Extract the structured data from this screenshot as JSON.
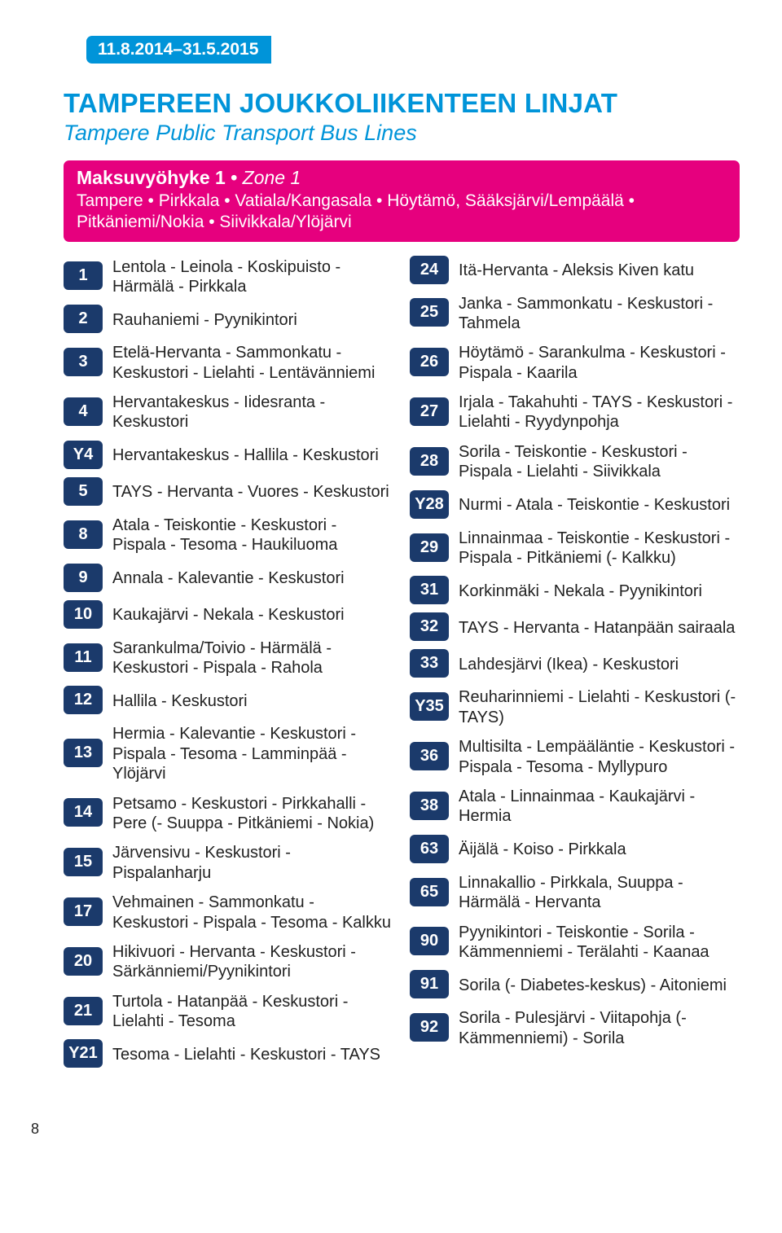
{
  "date_range": "11.8.2014–31.5.2015",
  "title": "TAMPEREEN JOUKKOLIIKENTEEN LINJAT",
  "subtitle": "Tampere Public Transport Bus Lines",
  "zone": {
    "label": "Maksuvyöhyke 1",
    "zone_en": "Zone 1",
    "areas": "Tampere • Pirkkala • Vatiala/Kangasala • Höytämö, Sääksjärvi/Lempäälä • Pitkäniemi/Nokia • Siivikkala/Ylöjärvi"
  },
  "colors": {
    "accent": "#0094d9",
    "zone_bg": "#e6007e",
    "badge_bg": "#1b3a6b"
  },
  "left": [
    {
      "num": "1",
      "route": "Lentola - Leinola - Koskipuisto - Härmälä - Pirkkala"
    },
    {
      "num": "2",
      "route": "Rauhaniemi - Pyynikintori"
    },
    {
      "num": "3",
      "route": "Etelä-Hervanta - Sammonkatu - Keskustori - Lielahti - Lentävänniemi"
    },
    {
      "num": "4",
      "route": "Hervantakeskus - Iidesranta - Keskustori"
    },
    {
      "num": "Y4",
      "route": "Hervantakeskus - Hallila - Keskustori"
    },
    {
      "num": "5",
      "route": "TAYS - Hervanta - Vuores - Keskustori"
    },
    {
      "num": "8",
      "route": "Atala - Teiskontie - Keskustori - Pispala - Tesoma - Haukiluoma"
    },
    {
      "num": "9",
      "route": "Annala - Kalevantie - Keskustori"
    },
    {
      "num": "10",
      "route": "Kaukajärvi - Nekala - Keskustori"
    },
    {
      "num": "11",
      "route": "Sarankulma/Toivio - Härmälä - Keskustori - Pispala - Rahola"
    },
    {
      "num": "12",
      "route": "Hallila - Keskustori"
    },
    {
      "num": "13",
      "route": "Hermia - Kalevantie - Keskustori - Pispala - Tesoma - Lamminpää - Ylöjärvi"
    },
    {
      "num": "14",
      "route": "Petsamo - Keskustori - Pirkkahalli - Pere (- Suuppa - Pitkäniemi - Nokia)"
    },
    {
      "num": "15",
      "route": "Järvensivu - Keskustori - Pispalanharju"
    },
    {
      "num": "17",
      "route": "Vehmainen - Sammonkatu - Keskustori - Pispala - Tesoma - Kalkku"
    },
    {
      "num": "20",
      "route": "Hikivuori - Hervanta - Keskustori - Särkänniemi/Pyynikintori"
    },
    {
      "num": "21",
      "route": "Turtola - Hatanpää - Keskustori - Lielahti - Tesoma"
    },
    {
      "num": "Y21",
      "route": "Tesoma - Lielahti - Keskustori - TAYS"
    }
  ],
  "right": [
    {
      "num": "24",
      "route": "Itä-Hervanta - Aleksis Kiven katu"
    },
    {
      "num": "25",
      "route": "Janka - Sammonkatu - Keskustori - Tahmela"
    },
    {
      "num": "26",
      "route": "Höytämö - Sarankulma - Keskustori - Pispala - Kaarila"
    },
    {
      "num": "27",
      "route": "Irjala - Takahuhti - TAYS - Keskustori - Lielahti - Ryydynpohja"
    },
    {
      "num": "28",
      "route": "Sorila - Teiskontie - Keskustori - Pispala - Lielahti - Siivikkala"
    },
    {
      "num": "Y28",
      "route": "Nurmi - Atala - Teiskontie - Keskustori"
    },
    {
      "num": "29",
      "route": "Linnainmaa - Teiskontie - Keskustori - Pispala - Pitkäniemi (- Kalkku)"
    },
    {
      "num": "31",
      "route": "Korkinmäki - Nekala - Pyynikintori"
    },
    {
      "num": "32",
      "route": "TAYS - Hervanta - Hatanpään sairaala"
    },
    {
      "num": "33",
      "route": "Lahdesjärvi (Ikea) - Keskustori"
    },
    {
      "num": "Y35",
      "route": "Reuharinniemi - Lielahti - Keskustori (- TAYS)"
    },
    {
      "num": "36",
      "route": "Multisilta - Lempääläntie - Keskustori - Pispala - Tesoma - Myllypuro"
    },
    {
      "num": "38",
      "route": "Atala - Linnainmaa - Kaukajärvi - Hermia"
    },
    {
      "num": "63",
      "route": "Äijälä - Koiso - Pirkkala"
    },
    {
      "num": "65",
      "route": "Linnakallio - Pirkkala, Suuppa - Härmälä - Hervanta"
    },
    {
      "num": "90",
      "route": "Pyynikintori - Teiskontie - Sorila - Kämmenniemi - Terälahti - Kaanaa"
    },
    {
      "num": "91",
      "route": "Sorila (- Diabetes-keskus) - Aitoniemi"
    },
    {
      "num": "92",
      "route": "Sorila - Pulesjärvi - Viitapohja (- Kämmenniemi) - Sorila"
    }
  ],
  "page_number": "8"
}
